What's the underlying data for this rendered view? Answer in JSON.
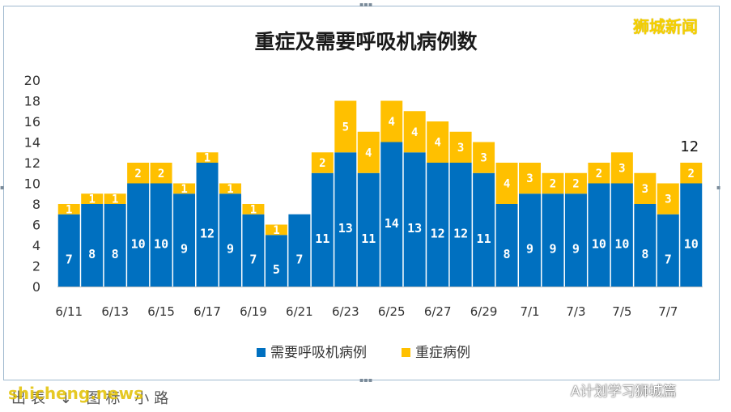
{
  "watermark": {
    "brand": "狮城新闻",
    "site": "shicheng.news",
    "caption": "出表 ↓ 图标 小路",
    "account": "A计划学习狮城篇"
  },
  "colors": {
    "ventilator": "#0070c0",
    "severe": "#ffc000",
    "frame": "#9fb9cf",
    "bar_label": "#ffffff"
  },
  "chart_data": {
    "type": "bar",
    "stacked": true,
    "title": "重症及需要呼吸机病例数",
    "categories": [
      "6/11",
      "6/12",
      "6/13",
      "6/14",
      "6/15",
      "6/16",
      "6/17",
      "6/18",
      "6/19",
      "6/20",
      "6/21",
      "6/22",
      "6/23",
      "6/24",
      "6/25",
      "6/26",
      "6/27",
      "6/28",
      "6/29",
      "6/30",
      "7/1",
      "7/2",
      "7/3",
      "7/4",
      "7/5",
      "7/6",
      "7/7",
      "7/8"
    ],
    "tick_labels": [
      "6/11",
      "",
      "6/13",
      "",
      "6/15",
      "",
      "6/17",
      "",
      "6/19",
      "",
      "6/21",
      "",
      "6/23",
      "",
      "6/25",
      "",
      "6/27",
      "",
      "6/29",
      "",
      "7/1",
      "",
      "7/3",
      "",
      "7/5",
      "",
      "7/7",
      ""
    ],
    "series": [
      {
        "name": "需要呼吸机病例",
        "values": [
          7,
          8,
          8,
          10,
          10,
          9,
          12,
          9,
          7,
          5,
          7,
          11,
          13,
          11,
          14,
          13,
          12,
          12,
          11,
          8,
          9,
          9,
          9,
          10,
          10,
          8,
          7,
          10
        ]
      },
      {
        "name": "重症病例",
        "values": [
          1,
          1,
          1,
          2,
          2,
          1,
          1,
          1,
          1,
          1,
          0,
          2,
          5,
          4,
          4,
          4,
          4,
          3,
          3,
          4,
          3,
          2,
          2,
          2,
          3,
          3,
          3,
          2
        ]
      }
    ],
    "total_annotation": {
      "category": "7/8",
      "text": "12"
    },
    "ylim": [
      0,
      20
    ],
    "yticks": [
      0,
      2,
      4,
      6,
      8,
      10,
      12,
      14,
      16,
      18,
      20
    ],
    "grid": false,
    "legend_position": "bottom",
    "xlabel": "",
    "ylabel": ""
  }
}
